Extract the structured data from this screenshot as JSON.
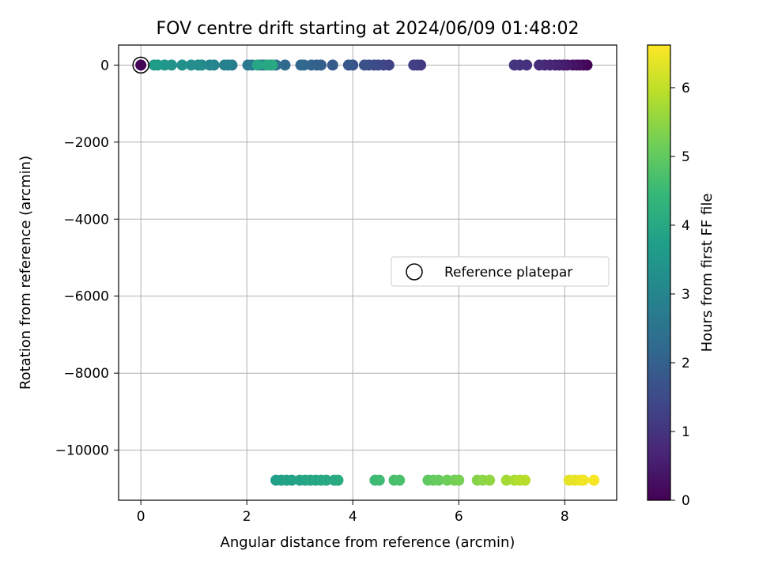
{
  "chart_data": {
    "type": "scatter",
    "title": "FOV centre drift starting at 2024/06/09 01:48:02",
    "xlabel": "Angular distance from reference (arcmin)",
    "ylabel": "Rotation from reference (arcmin)",
    "xlim": [
      -0.42,
      8.98
    ],
    "ylim": [
      -11300,
      520
    ],
    "xticks": [
      0,
      2,
      4,
      6,
      8
    ],
    "yticks": [
      0,
      -2000,
      -4000,
      -6000,
      -8000,
      -10000
    ],
    "xtick_labels": [
      "0",
      "2",
      "4",
      "6",
      "8"
    ],
    "ytick_labels": [
      "0",
      "−2000",
      "−4000",
      "−6000",
      "−8000",
      "−10000"
    ],
    "grid": true,
    "legend": {
      "position": "center-right",
      "entries": [
        "Reference platepar"
      ]
    },
    "colorbar": {
      "label": "Hours from first FF file",
      "range": [
        0,
        6.62
      ],
      "ticks": [
        0,
        1,
        2,
        3,
        4,
        5,
        6
      ],
      "tick_labels": [
        "0",
        "1",
        "2",
        "3",
        "4",
        "5",
        "6"
      ],
      "colormap": "viridis",
      "stops": [
        "#440154",
        "#482878",
        "#3e4989",
        "#31688e",
        "#26828e",
        "#1f9e89",
        "#35b779",
        "#6ece58",
        "#b5de2b",
        "#fde725"
      ]
    },
    "reference_point": {
      "x": 0.0,
      "y": 0,
      "name": "Reference platepar"
    },
    "points": [
      {
        "x": 8.42,
        "y": 0,
        "c": 0.05
      },
      {
        "x": 8.35,
        "y": 0,
        "c": 0.12
      },
      {
        "x": 8.28,
        "y": 0,
        "c": 0.19
      },
      {
        "x": 8.22,
        "y": 0,
        "c": 0.26
      },
      {
        "x": 8.15,
        "y": 0,
        "c": 0.33
      },
      {
        "x": 8.05,
        "y": 0,
        "c": 0.4
      },
      {
        "x": 7.98,
        "y": 0,
        "c": 0.47
      },
      {
        "x": 7.9,
        "y": 0,
        "c": 0.54
      },
      {
        "x": 7.82,
        "y": 0,
        "c": 0.61
      },
      {
        "x": 7.72,
        "y": 0,
        "c": 0.68
      },
      {
        "x": 7.62,
        "y": 0,
        "c": 0.75
      },
      {
        "x": 7.52,
        "y": 0,
        "c": 0.82
      },
      {
        "x": 7.28,
        "y": 0,
        "c": 0.89
      },
      {
        "x": 7.15,
        "y": 0,
        "c": 0.96
      },
      {
        "x": 7.05,
        "y": 0,
        "c": 1.03
      },
      {
        "x": 5.28,
        "y": 0,
        "c": 1.1
      },
      {
        "x": 5.22,
        "y": 0,
        "c": 1.17
      },
      {
        "x": 5.15,
        "y": 0,
        "c": 1.24
      },
      {
        "x": 4.68,
        "y": 0,
        "c": 1.31
      },
      {
        "x": 4.58,
        "y": 0,
        "c": 1.38
      },
      {
        "x": 4.48,
        "y": 0,
        "c": 1.45
      },
      {
        "x": 4.4,
        "y": 0,
        "c": 1.52
      },
      {
        "x": 4.3,
        "y": 0,
        "c": 1.59
      },
      {
        "x": 4.22,
        "y": 0,
        "c": 1.66
      },
      {
        "x": 4.0,
        "y": 0,
        "c": 1.73
      },
      {
        "x": 3.92,
        "y": 0,
        "c": 1.8
      },
      {
        "x": 3.62,
        "y": 0,
        "c": 1.87
      },
      {
        "x": 3.4,
        "y": 0,
        "c": 1.94
      },
      {
        "x": 3.32,
        "y": 0,
        "c": 2.01
      },
      {
        "x": 3.22,
        "y": 0,
        "c": 2.08
      },
      {
        "x": 3.08,
        "y": 0,
        "c": 2.15
      },
      {
        "x": 3.02,
        "y": 0,
        "c": 2.22
      },
      {
        "x": 2.72,
        "y": 0,
        "c": 2.29
      },
      {
        "x": 2.55,
        "y": 0,
        "c": 2.36
      },
      {
        "x": 2.45,
        "y": 0,
        "c": 2.43
      },
      {
        "x": 2.32,
        "y": 0,
        "c": 2.5
      },
      {
        "x": 2.25,
        "y": 0,
        "c": 2.57
      },
      {
        "x": 2.1,
        "y": 0,
        "c": 2.64
      },
      {
        "x": 2.02,
        "y": 0,
        "c": 2.71
      },
      {
        "x": 1.72,
        "y": 0,
        "c": 2.78
      },
      {
        "x": 1.65,
        "y": 0,
        "c": 2.85
      },
      {
        "x": 1.58,
        "y": 0,
        "c": 2.92
      },
      {
        "x": 1.38,
        "y": 0,
        "c": 2.99
      },
      {
        "x": 1.3,
        "y": 0,
        "c": 3.06
      },
      {
        "x": 1.15,
        "y": 0,
        "c": 3.13
      },
      {
        "x": 1.08,
        "y": 0,
        "c": 3.2
      },
      {
        "x": 0.95,
        "y": 0,
        "c": 3.27
      },
      {
        "x": 0.78,
        "y": 0,
        "c": 3.34
      },
      {
        "x": 0.58,
        "y": 0,
        "c": 3.41
      },
      {
        "x": 0.45,
        "y": 0,
        "c": 3.48
      },
      {
        "x": 0.32,
        "y": 0,
        "c": 3.55
      },
      {
        "x": 0.25,
        "y": 0,
        "c": 3.62
      },
      {
        "x": 2.2,
        "y": 0,
        "c": 3.9
      },
      {
        "x": 2.38,
        "y": 0,
        "c": 3.95
      },
      {
        "x": 2.48,
        "y": 0,
        "c": 4.0
      },
      {
        "x": 2.55,
        "y": -10780,
        "c": 3.7
      },
      {
        "x": 2.65,
        "y": -10780,
        "c": 3.75
      },
      {
        "x": 2.75,
        "y": -10780,
        "c": 3.8
      },
      {
        "x": 2.85,
        "y": -10780,
        "c": 3.82
      },
      {
        "x": 3.0,
        "y": -10780,
        "c": 3.85
      },
      {
        "x": 3.1,
        "y": -10780,
        "c": 3.88
      },
      {
        "x": 3.2,
        "y": -10780,
        "c": 3.9
      },
      {
        "x": 3.3,
        "y": -10780,
        "c": 3.93
      },
      {
        "x": 3.4,
        "y": -10780,
        "c": 3.95
      },
      {
        "x": 3.5,
        "y": -10780,
        "c": 3.97
      },
      {
        "x": 3.65,
        "y": -10780,
        "c": 4.0
      },
      {
        "x": 3.72,
        "y": -10780,
        "c": 4.03
      },
      {
        "x": 4.42,
        "y": -10780,
        "c": 4.5
      },
      {
        "x": 4.5,
        "y": -10780,
        "c": 4.55
      },
      {
        "x": 4.78,
        "y": -10780,
        "c": 4.65
      },
      {
        "x": 4.88,
        "y": -10780,
        "c": 4.7
      },
      {
        "x": 5.42,
        "y": -10780,
        "c": 4.95
      },
      {
        "x": 5.52,
        "y": -10780,
        "c": 5.0
      },
      {
        "x": 5.62,
        "y": -10780,
        "c": 5.05
      },
      {
        "x": 5.78,
        "y": -10780,
        "c": 5.12
      },
      {
        "x": 5.92,
        "y": -10780,
        "c": 5.18
      },
      {
        "x": 6.0,
        "y": -10780,
        "c": 5.22
      },
      {
        "x": 6.35,
        "y": -10780,
        "c": 5.4
      },
      {
        "x": 6.45,
        "y": -10780,
        "c": 5.45
      },
      {
        "x": 6.58,
        "y": -10780,
        "c": 5.5
      },
      {
        "x": 6.9,
        "y": -10780,
        "c": 5.7
      },
      {
        "x": 7.05,
        "y": -10780,
        "c": 5.78
      },
      {
        "x": 7.15,
        "y": -10780,
        "c": 5.85
      },
      {
        "x": 7.25,
        "y": -10780,
        "c": 5.9
      },
      {
        "x": 8.08,
        "y": -10780,
        "c": 6.35
      },
      {
        "x": 8.18,
        "y": -10780,
        "c": 6.4
      },
      {
        "x": 8.28,
        "y": -10780,
        "c": 6.45
      },
      {
        "x": 8.35,
        "y": -10780,
        "c": 6.5
      },
      {
        "x": 8.55,
        "y": -10780,
        "c": 6.55
      }
    ]
  }
}
